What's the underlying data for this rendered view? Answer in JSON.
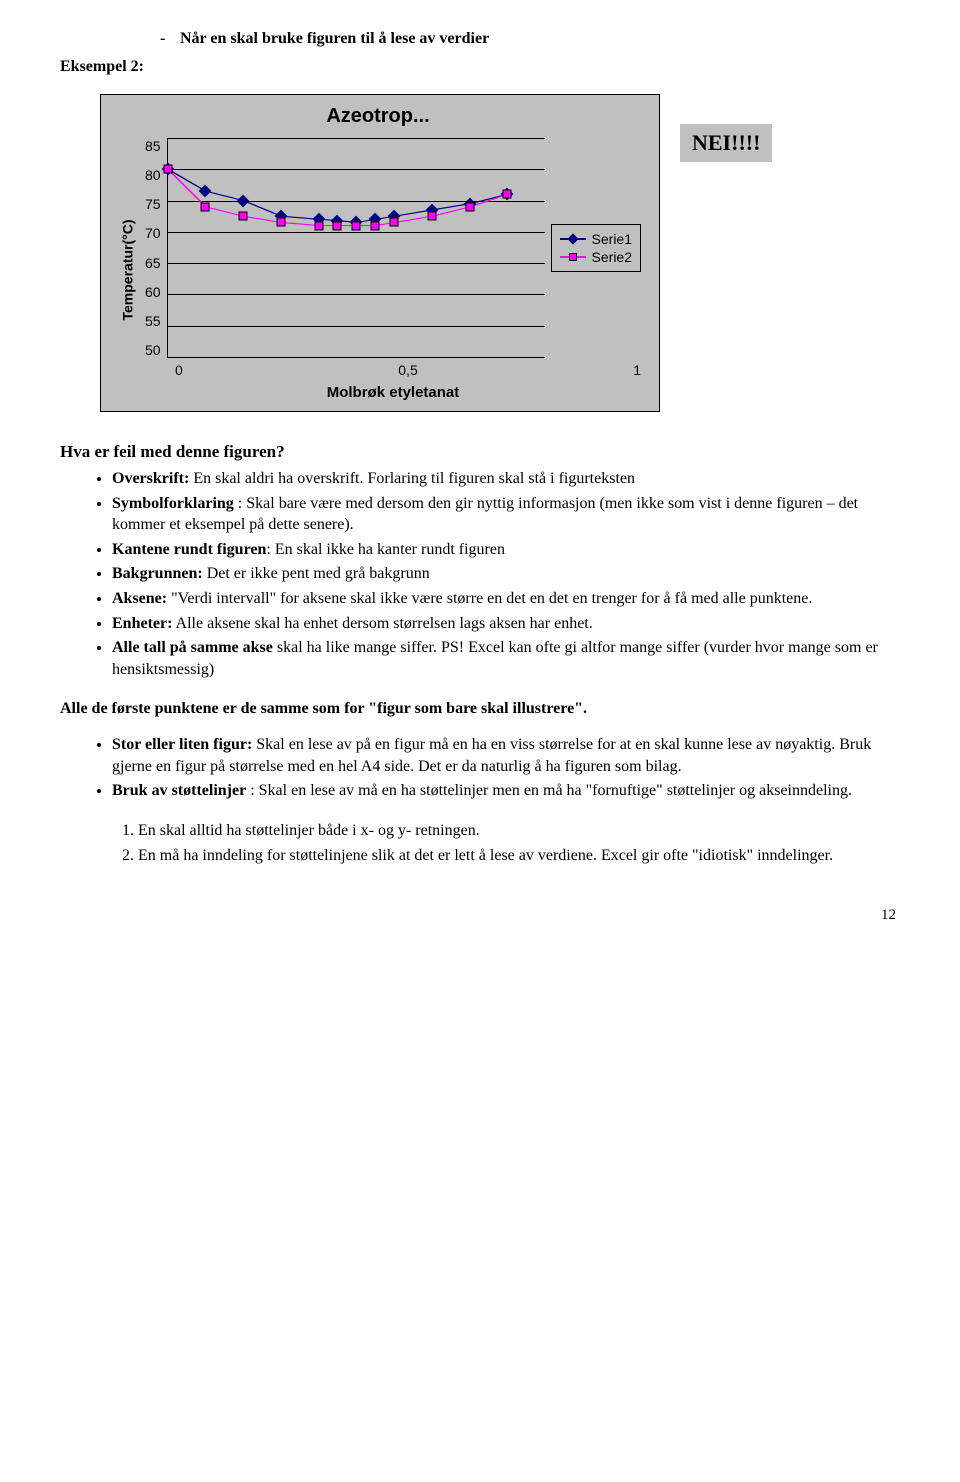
{
  "top_bullet": "Når en skal bruke figuren til å lese av verdier",
  "example_label": "Eksempel 2:",
  "chart": {
    "type": "line",
    "title": "Azeotrop...",
    "ylabel": "Temperatur(°C)",
    "xlabel": "Molbrøk etyletanat",
    "background_color": "#c0c0c0",
    "grid_color": "#000000",
    "ylim": [
      50,
      85
    ],
    "ytick_step": 5,
    "yticks": [
      "85",
      "80",
      "75",
      "70",
      "65",
      "60",
      "55",
      "50"
    ],
    "xlim": [
      0,
      1
    ],
    "xticks": [
      "0",
      "0,5",
      "1"
    ],
    "series": [
      {
        "name": "Serie1",
        "color": "#000080",
        "marker": "diamond",
        "marker_size": 9,
        "x": [
          0.0,
          0.1,
          0.2,
          0.3,
          0.4,
          0.45,
          0.5,
          0.55,
          0.6,
          0.7,
          0.8,
          0.9
        ],
        "y": [
          80,
          76.5,
          75,
          72.5,
          72,
          71.8,
          71.5,
          72,
          72.5,
          73.5,
          74.5,
          76
        ]
      },
      {
        "name": "Serie2",
        "color": "#ff00ff",
        "marker": "square",
        "marker_size": 9,
        "x": [
          0.0,
          0.1,
          0.2,
          0.3,
          0.4,
          0.45,
          0.5,
          0.55,
          0.6,
          0.7,
          0.8,
          0.9
        ],
        "y": [
          80,
          74,
          72.5,
          71.5,
          71,
          71,
          71,
          71,
          71.5,
          72.5,
          74,
          76
        ]
      }
    ],
    "legend": [
      "Serie1",
      "Serie2"
    ]
  },
  "nei_label": "NEI!!!!",
  "question": "Hva er feil med denne figuren?",
  "bullets1": [
    {
      "bold": "Overskrift:",
      "text": " En skal aldri ha overskrift. Forlaring til figuren skal stå i figurteksten"
    },
    {
      "bold": "Symbolforklaring",
      "text": " : Skal bare være med dersom den gir nyttig informasjon (men ikke som vist i denne figuren – det kommer et eksempel på dette senere)."
    },
    {
      "bold": "Kantene rundt figuren",
      "text": ": En skal ikke ha kanter rundt figuren"
    },
    {
      "bold": "Bakgrunnen:",
      "text": " Det er ikke pent med grå bakgrunn"
    },
    {
      "bold": "Aksene:",
      "text": " \"Verdi intervall\" for aksene skal ikke være større en det en det en trenger for å få med alle punktene."
    },
    {
      "bold": "Enheter:",
      "text": " Alle aksene skal ha enhet dersom størrelsen lags aksen har enhet."
    },
    {
      "bold": "Alle tall på samme akse",
      "text": " skal ha like mange siffer. PS! Excel kan ofte gi altfor mange siffer (vurder hvor mange som er hensiktsmessig)"
    }
  ],
  "para1": "Alle de første punktene er de samme som for \"figur som bare skal illustrere\".",
  "bullets2": [
    {
      "bold": "Stor eller liten figur:",
      "text": " Skal en lese av på en figur må en ha en viss størrelse for at en skal kunne lese av nøyaktig. Bruk gjerne en figur på størrelse med en hel A4 side. Det er da naturlig å ha figuren som bilag."
    },
    {
      "bold": "Bruk av støttelinjer",
      "text": " : Skal en lese av må en ha støttelinjer men en må ha \"fornuftige\" støttelinjer og akseinndeling."
    }
  ],
  "numlist": [
    "En skal alltid ha støttelinjer både i x- og y- retningen.",
    "En må ha inndeling for støttelinjene slik at det er lett å lese av verdiene. Excel gir ofte \"idiotisk\" inndelinger."
  ],
  "pagenum": "12"
}
